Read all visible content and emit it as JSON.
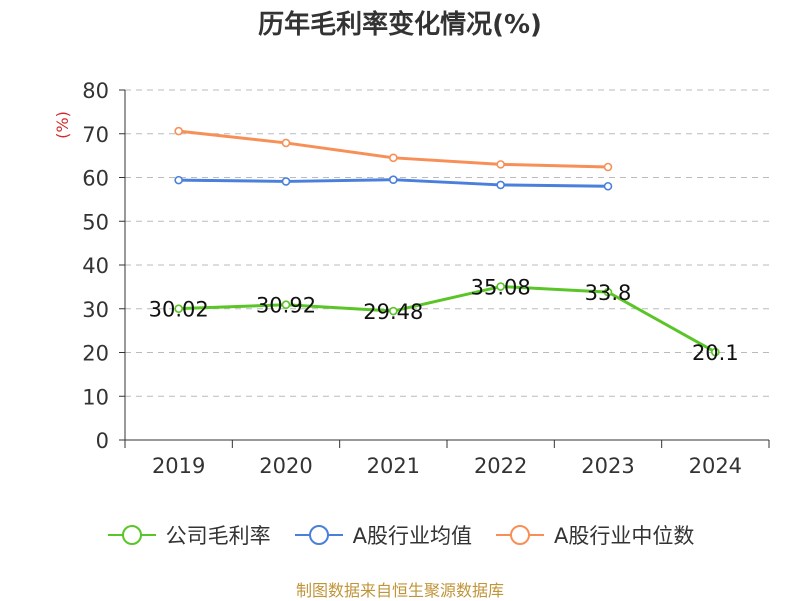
{
  "chart_data": {
    "type": "line",
    "title": "历年毛利率变化情况(%)",
    "ylabel": "(%)",
    "categories": [
      "2019",
      "2020",
      "2021",
      "2022",
      "2023",
      "2024"
    ],
    "ylim": [
      0,
      80
    ],
    "yticks": [
      0,
      10,
      20,
      30,
      40,
      50,
      60,
      70,
      80
    ],
    "grid": true,
    "legend_position": "bottom",
    "series": [
      {
        "name": "公司毛利率",
        "color": "#5ac526",
        "values": [
          30.02,
          30.92,
          29.48,
          35.08,
          33.8,
          20.1
        ],
        "labels": [
          "30.02",
          "30.92",
          "29.48",
          "35.08",
          "33.8",
          "20.1"
        ]
      },
      {
        "name": "A股行业均值",
        "color": "#4a7fdb",
        "values": [
          59.4,
          59.1,
          59.5,
          58.3,
          58.0,
          null
        ]
      },
      {
        "name": "A股行业中位数",
        "color": "#f78f57",
        "values": [
          70.6,
          67.9,
          64.5,
          63.0,
          62.4,
          null
        ]
      }
    ]
  },
  "source": "制图数据来自恒生聚源数据库"
}
